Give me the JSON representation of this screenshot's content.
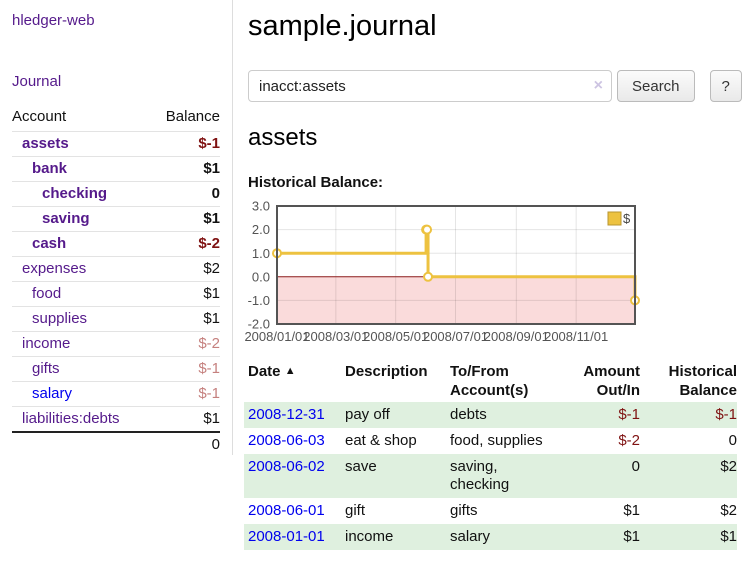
{
  "colors": {
    "link_visited_purple": "#551a8b",
    "link_blue": "#0000ee",
    "negative_dark": "#7f1212",
    "negative_light": "#c5807e",
    "row_stripe_green": "#dff0df",
    "chart_series_gold": "#edc240",
    "chart_negative_fill": "#fadbdb",
    "chart_zero_line": "#8b1a1a"
  },
  "icons": {
    "sort_asc": "▲",
    "clear": "×"
  },
  "app": {
    "brand": "hledger-web",
    "nav_journal": "Journal"
  },
  "sidebar": {
    "accounts_header": {
      "account": "Account",
      "balance": "Balance"
    },
    "rows": [
      {
        "label": "assets",
        "balance": "$-1",
        "indent": 1,
        "bold": true,
        "link_color": "purple"
      },
      {
        "label": "bank",
        "balance": "$1",
        "indent": 2,
        "bold": true,
        "link_color": "purple"
      },
      {
        "label": "checking",
        "balance": "0",
        "indent": 3,
        "bold": true,
        "link_color": "purple"
      },
      {
        "label": "saving",
        "balance": "$1",
        "indent": 3,
        "bold": true,
        "link_color": "purple"
      },
      {
        "label": "cash",
        "balance": "$-2",
        "indent": 2,
        "bold": true,
        "link_color": "purple"
      },
      {
        "label": "expenses",
        "balance": "$2",
        "indent": 1,
        "bold": false,
        "link_color": "purple"
      },
      {
        "label": "food",
        "balance": "$1",
        "indent": 2,
        "bold": false,
        "link_color": "purple"
      },
      {
        "label": "supplies",
        "balance": "$1",
        "indent": 2,
        "bold": false,
        "link_color": "purple"
      },
      {
        "label": "income",
        "balance": "$-2",
        "indent": 1,
        "bold": false,
        "link_color": "purple"
      },
      {
        "label": "gifts",
        "balance": "$-1",
        "indent": 2,
        "bold": false,
        "link_color": "purple"
      },
      {
        "label": "salary",
        "balance": "$-1",
        "indent": 2,
        "bold": false,
        "link_color": "blue"
      },
      {
        "label": "liabilities:debts",
        "balance": "$1",
        "indent": 1,
        "bold": false,
        "link_color": "purple"
      }
    ],
    "total": "0"
  },
  "main": {
    "title": "sample.journal",
    "search": {
      "value": "inacct:assets",
      "button_label": "Search",
      "help_label": "?"
    },
    "account_heading": "assets",
    "chart_label": "Historical Balance:"
  },
  "chart_data": {
    "type": "line",
    "step": true,
    "title": "Historical Balance",
    "grid": true,
    "legend_position": "top-right",
    "xrange": [
      "2008-01-01",
      "2008-12-31"
    ],
    "ylim": [
      -2,
      3
    ],
    "yticks": [
      {
        "value": 3,
        "label": "3.0"
      },
      {
        "value": 2,
        "label": "2.0"
      },
      {
        "value": 1,
        "label": "1.0"
      },
      {
        "value": 0,
        "label": "0.0"
      },
      {
        "value": -1,
        "label": "-1.0"
      },
      {
        "value": -2,
        "label": "-2.0"
      }
    ],
    "xticks": [
      {
        "date": "2008-01-01",
        "label": "2008/01/01"
      },
      {
        "date": "2008-03-01",
        "label": "2008/03/01"
      },
      {
        "date": "2008-05-01",
        "label": "2008/05/01"
      },
      {
        "date": "2008-07-01",
        "label": "2008/07/01"
      },
      {
        "date": "2008-09-01",
        "label": "2008/09/01"
      },
      {
        "date": "2008-11-01",
        "label": "2008/11/01"
      }
    ],
    "series": [
      {
        "name": "$",
        "color": "#edc240",
        "points": [
          {
            "x": "2008-01-01",
            "y": 1
          },
          {
            "x": "2008-06-01",
            "y": 2
          },
          {
            "x": "2008-06-02",
            "y": 2
          },
          {
            "x": "2008-06-03",
            "y": 0
          },
          {
            "x": "2008-12-31",
            "y": -1
          }
        ]
      }
    ],
    "negative_region_fill": "#fadbdb"
  },
  "register": {
    "headers": [
      "Date",
      "Description",
      "To/From Account(s)",
      "Amount Out/In",
      "Historical Balance"
    ],
    "rows": [
      {
        "date": "2008-12-31",
        "description": "pay off",
        "accounts": "debts",
        "amount": "$-1",
        "balance": "$-1"
      },
      {
        "date": "2008-06-03",
        "description": "eat & shop",
        "accounts": "food, supplies",
        "amount": "$-2",
        "balance": "0"
      },
      {
        "date": "2008-06-02",
        "description": "save",
        "accounts": "saving, checking",
        "amount": "0",
        "balance": "$2"
      },
      {
        "date": "2008-06-01",
        "description": "gift",
        "accounts": "gifts",
        "amount": "$1",
        "balance": "$2"
      },
      {
        "date": "2008-01-01",
        "description": "income",
        "accounts": "salary",
        "amount": "$1",
        "balance": "$1"
      }
    ]
  }
}
